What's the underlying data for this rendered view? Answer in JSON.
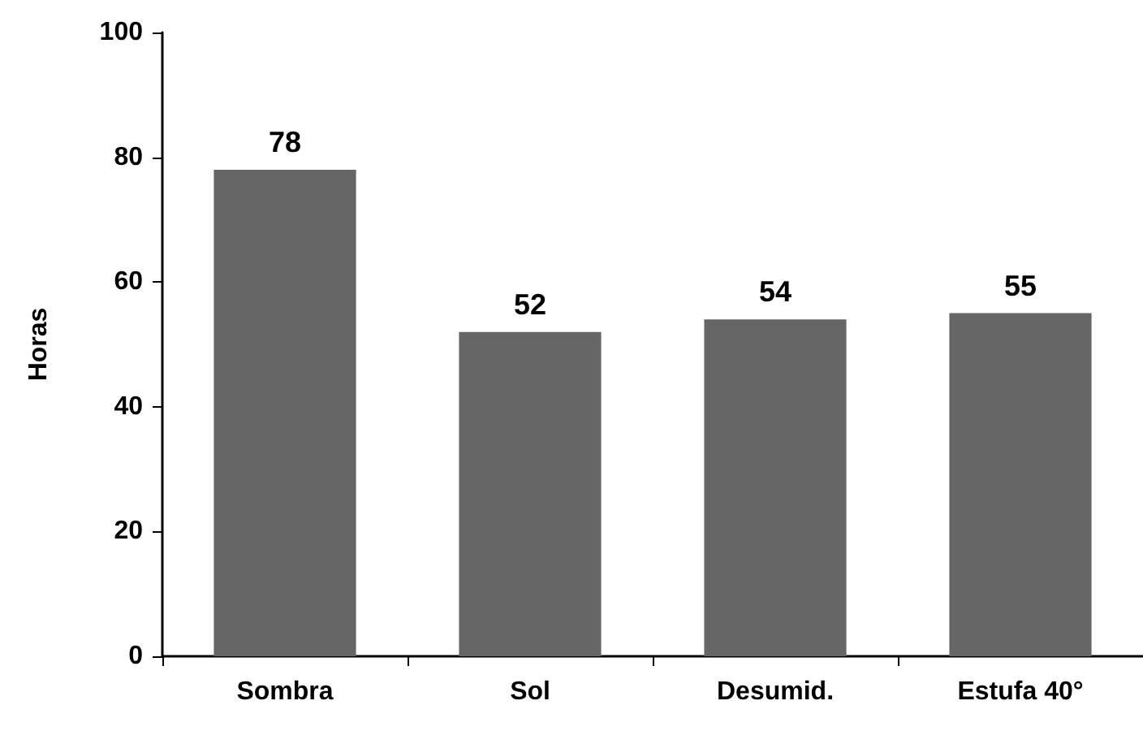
{
  "chart_data": {
    "type": "bar",
    "ylabel": "Horas",
    "categories": [
      "Sombra",
      "Sol",
      "Desumid.",
      "Estufa 40°"
    ],
    "values": [
      78,
      52,
      54,
      55
    ],
    "color": "#666666",
    "ylim": [
      0,
      100
    ],
    "yticks": [
      0,
      20,
      40,
      60,
      80,
      100
    ],
    "grid": false,
    "data_labels": true
  }
}
